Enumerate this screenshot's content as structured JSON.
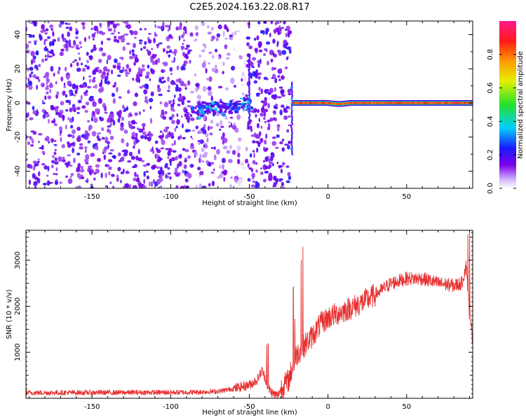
{
  "figure_title": "C2E5.2024.163.22.08.R17",
  "chart_data": [
    {
      "type": "heatmap",
      "xlabel": "Height of straight line (km)",
      "ylabel": "Frequency (Hz)",
      "xlim": [
        -192,
        92
      ],
      "ylim": [
        -50,
        48
      ],
      "xticks": [
        -150,
        -100,
        -50,
        0,
        50
      ],
      "yticks": [
        -40,
        -20,
        0,
        20,
        40
      ],
      "colorbar": {
        "label": "Normalized spectral amplitude",
        "range": [
          0,
          1
        ],
        "ticks": [
          "0.0",
          "0.2",
          "0.4",
          "0.6",
          "0.8"
        ],
        "colormap": "spectral-rainbow (white→purple→blue→cyan→green→yellow→orange→red→magenta)"
      },
      "features": [
        {
          "desc": "diffuse noise",
          "x": [
            -192,
            -24
          ],
          "freq": [
            -50,
            48
          ],
          "amplitude": 0.12
        },
        {
          "desc": "faint wake band",
          "x": [
            -87,
            -50
          ],
          "freq_center": -5,
          "amplitude": 0.4
        },
        {
          "desc": "meteor head vertical streak",
          "x": -50,
          "freq": [
            -12,
            28
          ],
          "amplitude": 0.5
        },
        {
          "desc": "meteor head vertical streak",
          "x": -23,
          "freq": [
            -30,
            12
          ],
          "amplitude": 0.55
        },
        {
          "desc": "strong narrow echo band",
          "x": [
            -22,
            92
          ],
          "freq_center": 0,
          "amplitude": 0.95
        }
      ]
    },
    {
      "type": "line",
      "xlabel": "Height of straight line (km)",
      "ylabel": "SNR (10 * v/v)",
      "xlim": [
        -192,
        92
      ],
      "ylim": [
        0,
        3650
      ],
      "xticks": [
        -150,
        -100,
        -50,
        0,
        50
      ],
      "yticks": [
        1000,
        2000,
        3000
      ],
      "color": "#e83030",
      "trend": {
        "x": [
          -192,
          -90,
          -70,
          -60,
          -50,
          -45,
          -42,
          -40,
          -38,
          -35,
          -32,
          -30,
          -25,
          -20,
          -15,
          -10,
          -5,
          0,
          10,
          20,
          30,
          40,
          50,
          60,
          70,
          80,
          85,
          88,
          90,
          92
        ],
        "y": [
          120,
          130,
          150,
          210,
          290,
          400,
          600,
          450,
          230,
          100,
          60,
          200,
          400,
          950,
          1150,
          1350,
          1600,
          1750,
          1900,
          2050,
          2250,
          2500,
          2600,
          2600,
          2500,
          2450,
          2500,
          2900,
          1800,
          1300
        ]
      },
      "spikes": [
        {
          "x": -39,
          "y": 1160
        },
        {
          "x": -38,
          "y": 1190
        },
        {
          "x": -22,
          "y": 2420
        },
        {
          "x": -21,
          "y": 1720
        },
        {
          "x": -17,
          "y": 3000
        },
        {
          "x": -16,
          "y": 3290
        },
        {
          "x": 89,
          "y": 3560
        },
        {
          "x": 90,
          "y": 3650
        }
      ]
    }
  ]
}
